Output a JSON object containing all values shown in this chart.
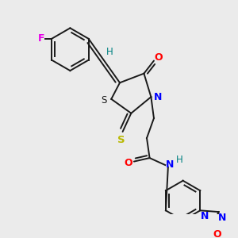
{
  "bg_color": "#ebebeb",
  "bond_color": "#1a1a1a",
  "colors": {
    "F": "#e800e8",
    "O": "#ff0000",
    "N": "#0000ff",
    "S_thione": "#b8b800",
    "S_ring": "#1a1a1a",
    "H": "#008080",
    "C": "#1a1a1a"
  }
}
